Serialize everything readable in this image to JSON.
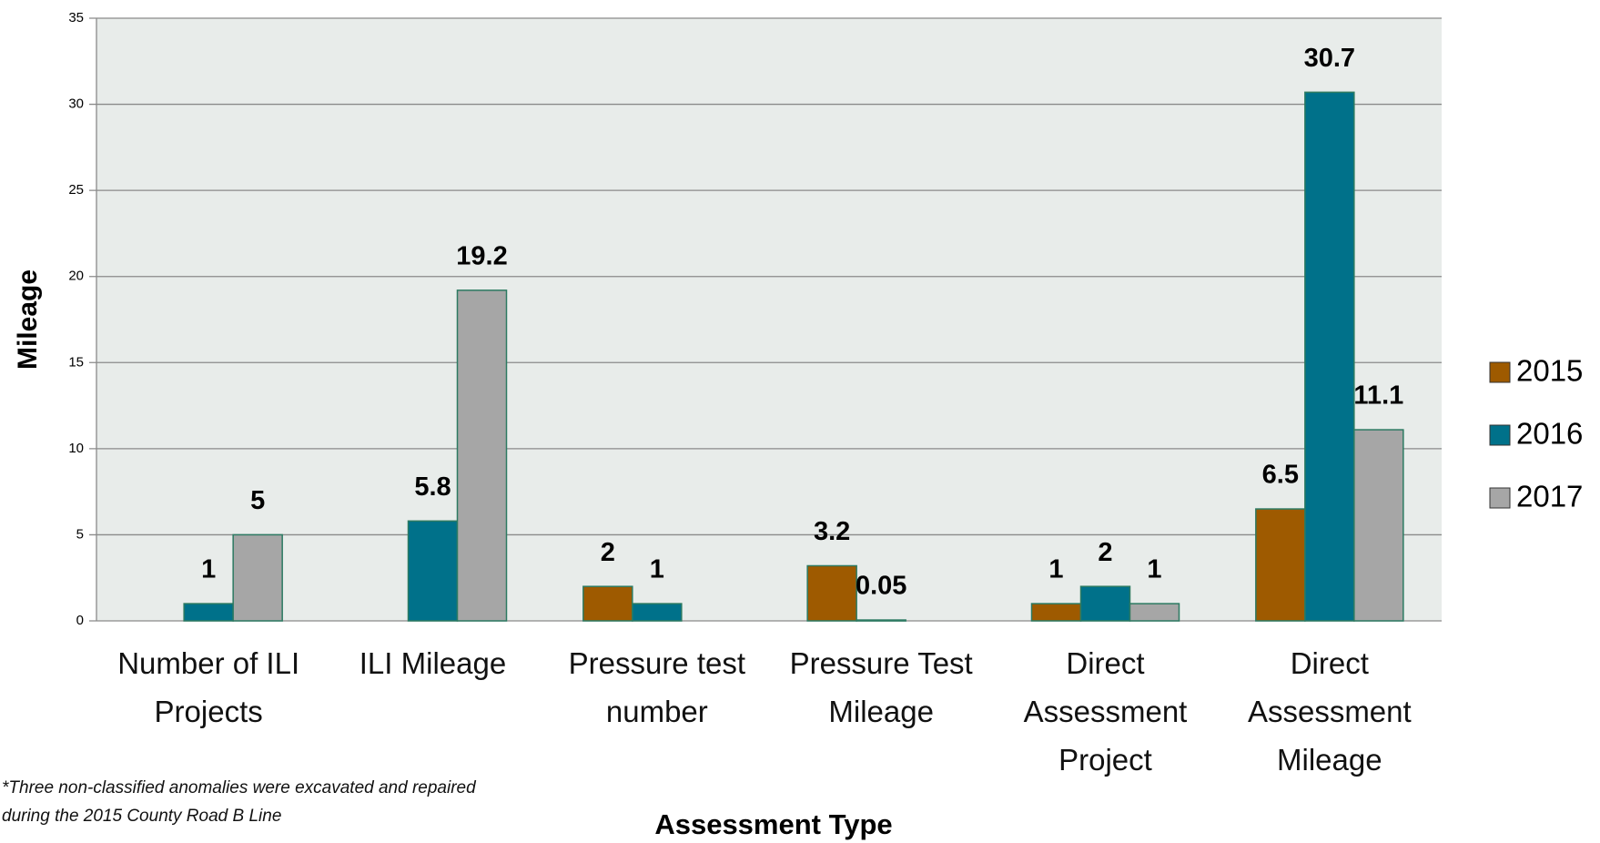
{
  "chart_data": {
    "type": "bar",
    "x_label": "Assessment Type",
    "y_label": "Mileage",
    "categories": [
      "Number of ILI Projects",
      "ILI Mileage",
      "Pressure test number",
      "Pressure Test Mileage",
      "Direct Assessment Project",
      "Direct Assessment Mileage"
    ],
    "series": [
      {
        "name": "2015",
        "color": "#9e5a00",
        "values": [
          null,
          null,
          2,
          3.2,
          1,
          6.5
        ]
      },
      {
        "name": "2016",
        "color": "#00718a",
        "values": [
          1,
          5.8,
          1,
          0.05,
          2,
          30.7
        ]
      },
      {
        "name": "2017",
        "color": "#a6a6a6",
        "values": [
          5,
          19.2,
          null,
          null,
          1,
          11.1
        ]
      }
    ],
    "ylim": [
      0,
      35
    ],
    "yticks": [
      0,
      5,
      10,
      15,
      20,
      25,
      30,
      35
    ],
    "grid": true,
    "legend": "right",
    "footnote": "*Three non-classified anomalies were excavated and repaired during the 2015 County Road B Line"
  }
}
